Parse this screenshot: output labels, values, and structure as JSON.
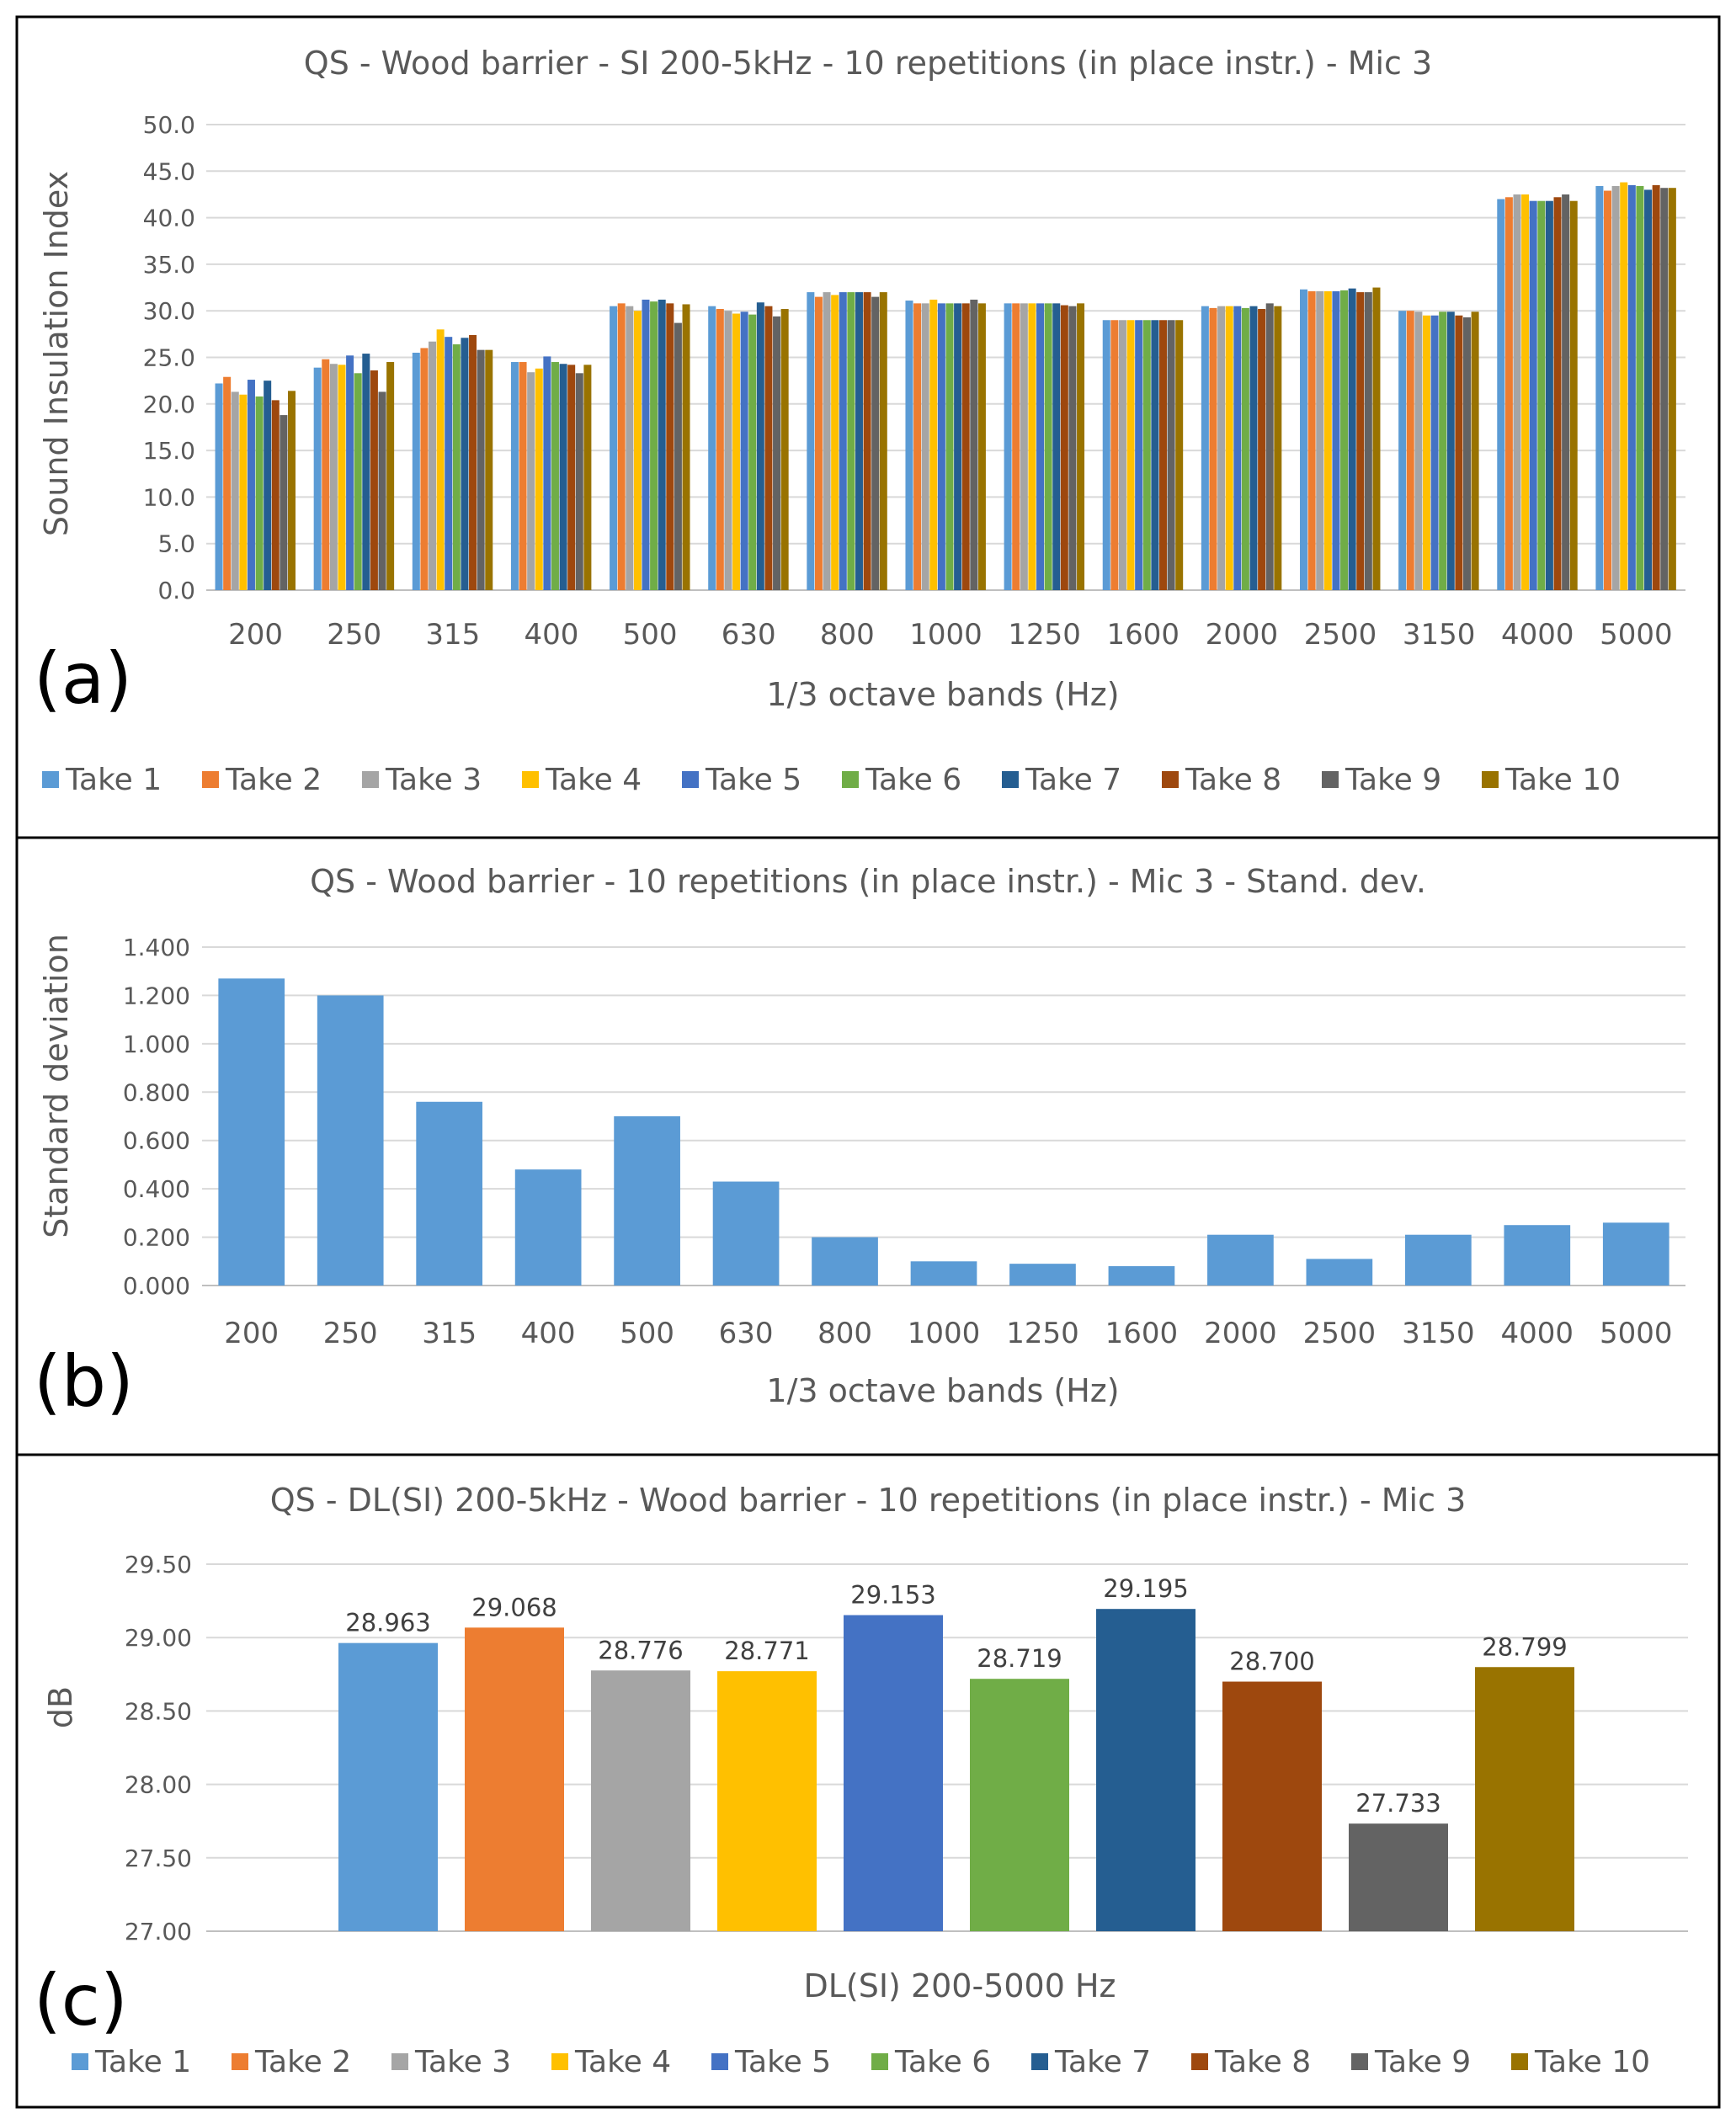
{
  "colors": [
    "#5b9bd5",
    "#ed7d31",
    "#a5a5a5",
    "#ffc000",
    "#4472c4",
    "#70ad47",
    "#255e91",
    "#9e480e",
    "#636363",
    "#997300"
  ],
  "legend": [
    "Take 1",
    "Take 2",
    "Take 3",
    "Take 4",
    "Take 5",
    "Take 6",
    "Take 7",
    "Take 8",
    "Take 9",
    "Take 10"
  ],
  "chart_data": [
    {
      "panel": "(a)",
      "type": "bar",
      "title": "QS - Wood barrier - SI 200-5kHz - 10 repetitions (in place instr.) - Mic 3",
      "xlabel": "1/3 octave bands (Hz)",
      "ylabel": "Sound Insulation Index",
      "ylim": [
        0,
        50
      ],
      "yticks": [
        "0.0",
        "5.0",
        "10.0",
        "15.0",
        "20.0",
        "25.0",
        "30.0",
        "35.0",
        "40.0",
        "45.0",
        "50.0"
      ],
      "categories": [
        "200",
        "250",
        "315",
        "400",
        "500",
        "630",
        "800",
        "1000",
        "1250",
        "1600",
        "2000",
        "2500",
        "3150",
        "4000",
        "5000"
      ],
      "legend_position": "bottom",
      "series": [
        {
          "name": "Take 1",
          "values": [
            22.2,
            23.9,
            25.5,
            24.5,
            30.5,
            30.5,
            32.0,
            31.1,
            30.8,
            29.0,
            30.5,
            32.3,
            30.0,
            42.0,
            43.4
          ]
        },
        {
          "name": "Take 2",
          "values": [
            22.9,
            24.8,
            26.0,
            24.5,
            30.8,
            30.2,
            31.5,
            30.8,
            30.8,
            29.0,
            30.3,
            32.1,
            30.0,
            42.2,
            42.9
          ]
        },
        {
          "name": "Take 3",
          "values": [
            21.3,
            24.3,
            26.7,
            23.4,
            30.5,
            30.0,
            32.0,
            30.8,
            30.8,
            29.0,
            30.5,
            32.1,
            29.9,
            42.5,
            43.4
          ]
        },
        {
          "name": "Take 4",
          "values": [
            21.0,
            24.2,
            28.0,
            23.8,
            30.0,
            29.7,
            31.7,
            31.2,
            30.8,
            29.0,
            30.5,
            32.1,
            29.5,
            42.5,
            43.8
          ]
        },
        {
          "name": "Take 5",
          "values": [
            22.6,
            25.2,
            27.2,
            25.1,
            31.2,
            29.9,
            32.0,
            30.8,
            30.8,
            29.0,
            30.5,
            32.1,
            29.5,
            41.8,
            43.5
          ]
        },
        {
          "name": "Take 6",
          "values": [
            20.8,
            23.3,
            26.4,
            24.5,
            31.0,
            29.6,
            32.0,
            30.8,
            30.8,
            29.0,
            30.3,
            32.2,
            29.9,
            41.8,
            43.4
          ]
        },
        {
          "name": "Take 7",
          "values": [
            22.5,
            25.4,
            27.1,
            24.3,
            31.2,
            30.9,
            32.0,
            30.8,
            30.8,
            29.0,
            30.5,
            32.4,
            29.9,
            41.8,
            43.0
          ]
        },
        {
          "name": "Take 8",
          "values": [
            20.4,
            23.6,
            27.4,
            24.2,
            30.8,
            30.5,
            32.0,
            30.8,
            30.6,
            29.0,
            30.2,
            32.0,
            29.5,
            42.2,
            43.5
          ]
        },
        {
          "name": "Take 9",
          "values": [
            18.8,
            21.3,
            25.8,
            23.3,
            28.7,
            29.4,
            31.5,
            31.2,
            30.5,
            29.0,
            30.8,
            32.0,
            29.3,
            42.5,
            43.2
          ]
        },
        {
          "name": "Take 10",
          "values": [
            21.4,
            24.5,
            25.8,
            24.2,
            30.7,
            30.2,
            32.0,
            30.8,
            30.8,
            29.0,
            30.5,
            32.5,
            29.9,
            41.8,
            43.2
          ]
        }
      ]
    },
    {
      "panel": "(b)",
      "type": "bar",
      "title": "QS - Wood barrier - 10 repetitions (in place instr.) - Mic 3 - Stand. dev.",
      "xlabel": "1/3 octave bands (Hz)",
      "ylabel": "Standard deviation",
      "ylim": [
        0,
        1.4
      ],
      "yticks": [
        "0.000",
        "0.200",
        "0.400",
        "0.600",
        "0.800",
        "1.000",
        "1.200",
        "1.400"
      ],
      "categories": [
        "200",
        "250",
        "315",
        "400",
        "500",
        "630",
        "800",
        "1000",
        "1250",
        "1600",
        "2000",
        "2500",
        "3150",
        "4000",
        "5000"
      ],
      "values": [
        1.27,
        1.2,
        0.76,
        0.48,
        0.7,
        0.43,
        0.2,
        0.1,
        0.09,
        0.08,
        0.21,
        0.11,
        0.21,
        0.25,
        0.26
      ]
    },
    {
      "panel": "(c)",
      "type": "bar",
      "title": "QS - DL(SI) 200-5kHz - Wood barrier - 10 repetitions (in place instr.) - Mic 3",
      "xlabel": "DL(SI) 200-5000 Hz",
      "ylabel": "dB",
      "ylim": [
        27.0,
        29.5
      ],
      "yticks": [
        "27.00",
        "27.50",
        "28.00",
        "28.50",
        "29.00",
        "29.50"
      ],
      "legend_position": "bottom",
      "series": [
        {
          "name": "Take 1",
          "value": 28.963,
          "label": "28.963"
        },
        {
          "name": "Take 2",
          "value": 29.068,
          "label": "29.068"
        },
        {
          "name": "Take 3",
          "value": 28.776,
          "label": "28.776"
        },
        {
          "name": "Take 4",
          "value": 28.771,
          "label": "28.771"
        },
        {
          "name": "Take 5",
          "value": 29.153,
          "label": "29.153"
        },
        {
          "name": "Take 6",
          "value": 28.719,
          "label": "28.719"
        },
        {
          "name": "Take 7",
          "value": 29.195,
          "label": "29.195"
        },
        {
          "name": "Take 8",
          "value": 28.7,
          "label": "28.700"
        },
        {
          "name": "Take 9",
          "value": 27.733,
          "label": "27.733"
        },
        {
          "name": "Take 10",
          "value": 28.799,
          "label": "28.799"
        }
      ]
    }
  ]
}
